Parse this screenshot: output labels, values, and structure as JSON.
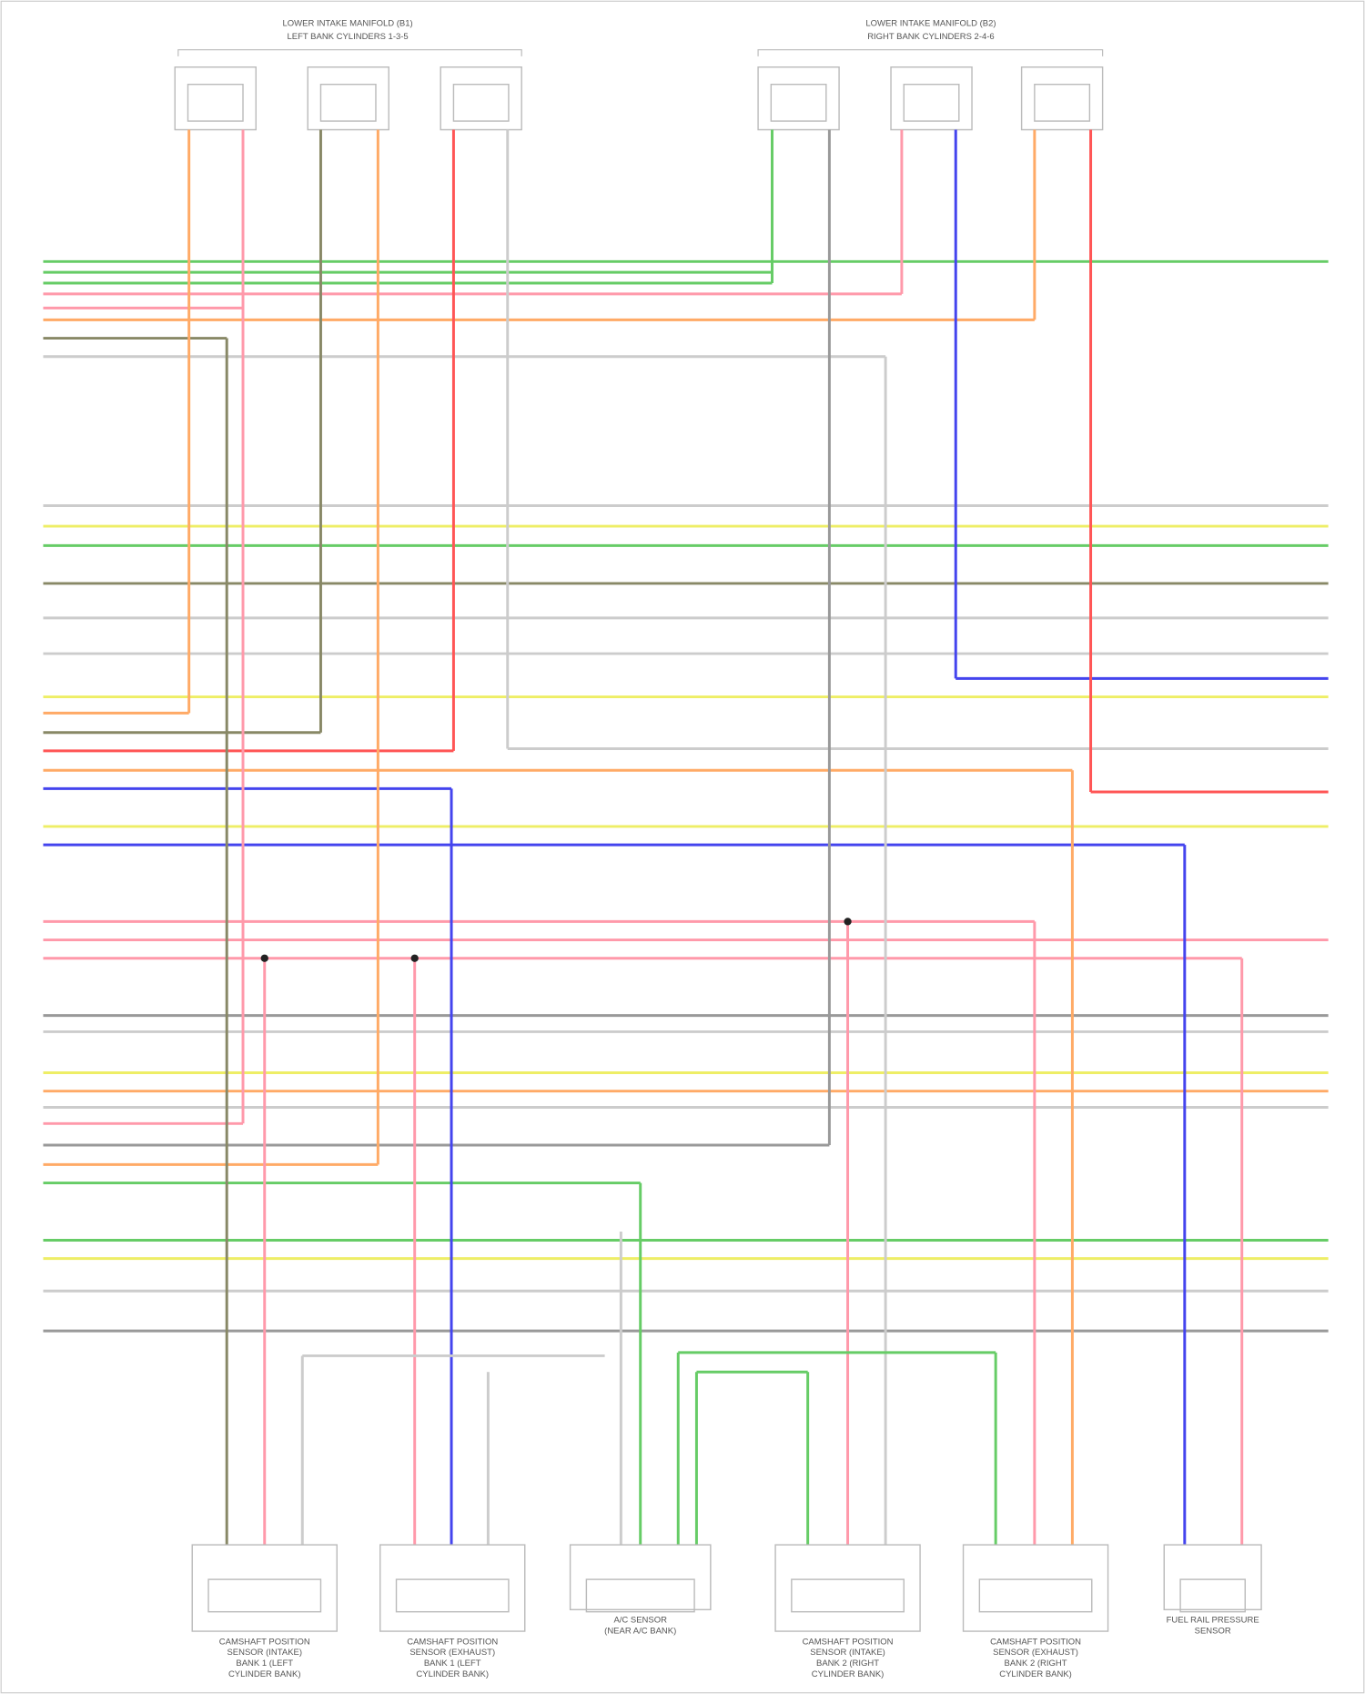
{
  "header": {
    "left_title": [
      "LOWER INTAKE MANIFOLD (B1)",
      "LEFT BANK CYLINDERS 1-3-5"
    ],
    "right_title": [
      "LOWER INTAKE MANIFOLD (B2)",
      "RIGHT BANK CYLINDERS 2-4-6"
    ]
  },
  "components": [
    {
      "label": [
        "CAMSHAFT POSITION",
        "SENSOR (INTAKE)",
        "BANK 1 (LEFT",
        "CYLINDER BANK)"
      ]
    },
    {
      "label": [
        "CAMSHAFT POSITION",
        "SENSOR (EXHAUST)",
        "BANK 1 (LEFT",
        "CYLINDER BANK)"
      ]
    },
    {
      "label": [
        "A/C SENSOR",
        "(NEAR A/C BANK)"
      ]
    },
    {
      "label": [
        "CAMSHAFT POSITION",
        "SENSOR (INTAKE)",
        "BANK 2 (RIGHT",
        "CYLINDER BANK)"
      ]
    },
    {
      "label": [
        "CAMSHAFT POSITION",
        "SENSOR (EXHAUST)",
        "BANK 2 (RIGHT",
        "CYLINDER BANK)"
      ]
    },
    {
      "label": [
        "FUEL RAIL PRESSURE",
        "SENSOR"
      ]
    }
  ]
}
